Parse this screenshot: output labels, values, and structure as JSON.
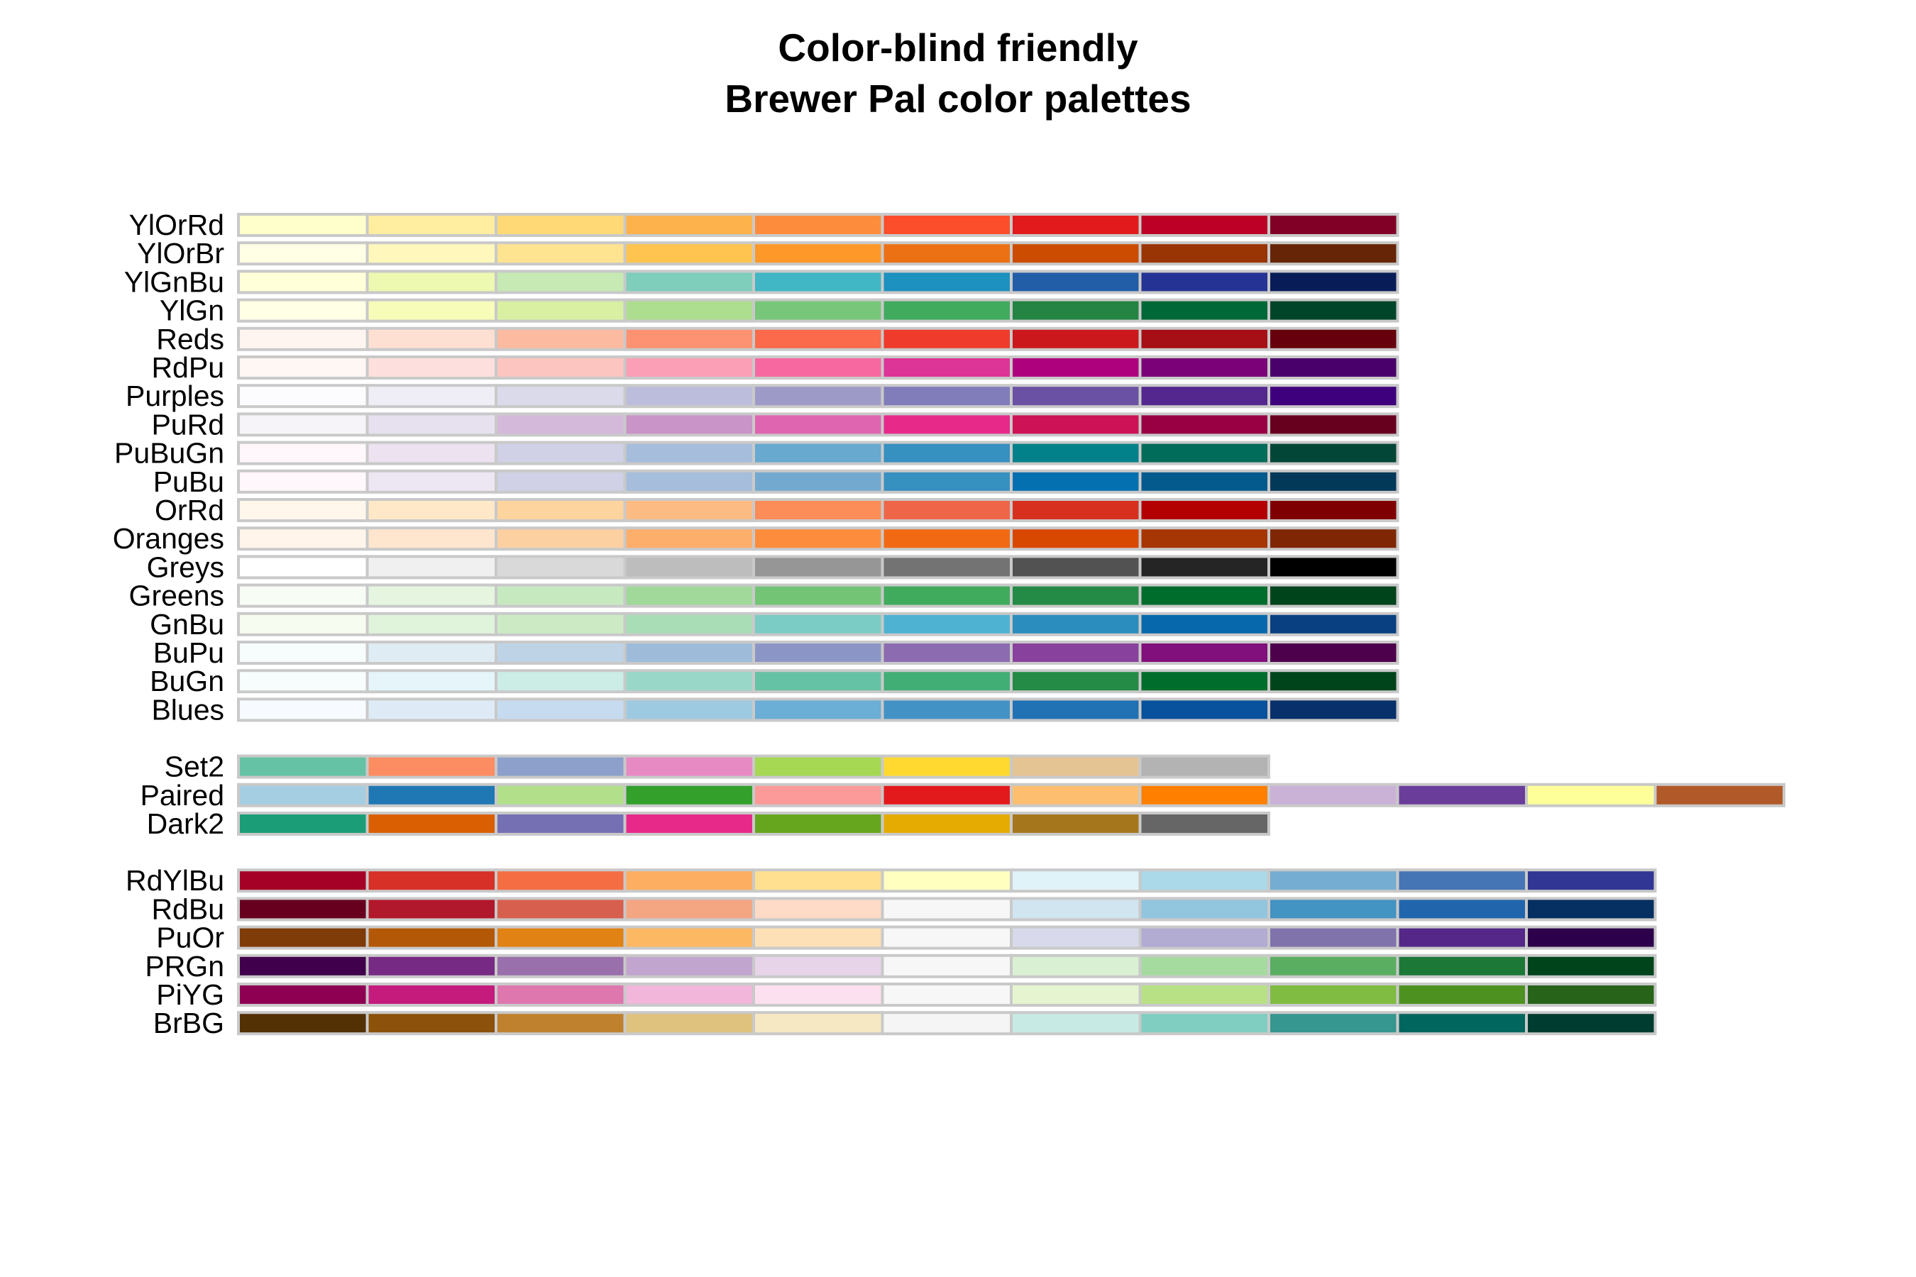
{
  "chart_data": {
    "type": "table",
    "title_lines": [
      "Color-blind friendly",
      "Brewer Pal color palettes"
    ],
    "groups": [
      {
        "kind": "sequential",
        "palettes": [
          {
            "name": "YlOrRd",
            "colors": [
              "#FFFFCC",
              "#FFEDA0",
              "#FED976",
              "#FEB24C",
              "#FD8D3C",
              "#FC4E2A",
              "#E31A1C",
              "#BD0026",
              "#800026"
            ]
          },
          {
            "name": "YlOrBr",
            "colors": [
              "#FFFFE5",
              "#FFF7BC",
              "#FEE391",
              "#FEC44F",
              "#FE9929",
              "#EC7014",
              "#CC4C02",
              "#993404",
              "#662506"
            ]
          },
          {
            "name": "YlGnBu",
            "colors": [
              "#FFFFD9",
              "#EDF8B1",
              "#C7E9B4",
              "#7FCDBB",
              "#41B6C4",
              "#1D91C0",
              "#225EA8",
              "#253494",
              "#081D58"
            ]
          },
          {
            "name": "YlGn",
            "colors": [
              "#FFFFE5",
              "#F7FCB9",
              "#D9F0A3",
              "#ADDD8E",
              "#78C679",
              "#41AB5D",
              "#238443",
              "#006837",
              "#004529"
            ]
          },
          {
            "name": "Reds",
            "colors": [
              "#FFF5F0",
              "#FEE0D2",
              "#FCBBA1",
              "#FC9272",
              "#FB6A4A",
              "#EF3B2C",
              "#CB181D",
              "#A50F15",
              "#67000D"
            ]
          },
          {
            "name": "RdPu",
            "colors": [
              "#FFF7F3",
              "#FDE0DD",
              "#FCC5C0",
              "#FA9FB5",
              "#F768A1",
              "#DD3497",
              "#AE017E",
              "#7A0177",
              "#49006A"
            ]
          },
          {
            "name": "Purples",
            "colors": [
              "#FCFBFD",
              "#EFEDF5",
              "#DADAEB",
              "#BCBDDC",
              "#9E9AC8",
              "#807DBA",
              "#6A51A3",
              "#54278F",
              "#3F007D"
            ]
          },
          {
            "name": "PuRd",
            "colors": [
              "#F7F4F9",
              "#E7E1EF",
              "#D4B9DA",
              "#C994C7",
              "#DF65B0",
              "#E7298A",
              "#CE1256",
              "#980043",
              "#67001F"
            ]
          },
          {
            "name": "PuBuGn",
            "colors": [
              "#FFF7FB",
              "#ECE2F0",
              "#D0D1E6",
              "#A6BDDB",
              "#67A9CF",
              "#3690C0",
              "#02818A",
              "#016C59",
              "#014636"
            ]
          },
          {
            "name": "PuBu",
            "colors": [
              "#FFF7FB",
              "#ECE7F2",
              "#D0D1E6",
              "#A6BDDB",
              "#74A9CF",
              "#3690C0",
              "#0570B0",
              "#045A8D",
              "#023858"
            ]
          },
          {
            "name": "OrRd",
            "colors": [
              "#FFF7EC",
              "#FEE8C8",
              "#FDD49E",
              "#FDBB84",
              "#FC8D59",
              "#EF6548",
              "#D7301F",
              "#B30000",
              "#7F0000"
            ]
          },
          {
            "name": "Oranges",
            "colors": [
              "#FFF5EB",
              "#FEE6CE",
              "#FDD0A2",
              "#FDAE6B",
              "#FD8D3C",
              "#F16913",
              "#D94801",
              "#A63603",
              "#7F2704"
            ]
          },
          {
            "name": "Greys",
            "colors": [
              "#FFFFFF",
              "#F0F0F0",
              "#D9D9D9",
              "#BDBDBD",
              "#969696",
              "#737373",
              "#525252",
              "#252525",
              "#000000"
            ]
          },
          {
            "name": "Greens",
            "colors": [
              "#F7FCF5",
              "#E5F5E0",
              "#C7E9C0",
              "#A1D99B",
              "#74C476",
              "#41AB5D",
              "#238B45",
              "#006D2C",
              "#00441B"
            ]
          },
          {
            "name": "GnBu",
            "colors": [
              "#F7FCF0",
              "#E0F3DB",
              "#CCEBC5",
              "#A8DDB5",
              "#7BCCC4",
              "#4EB3D3",
              "#2B8CBE",
              "#0868AC",
              "#084081"
            ]
          },
          {
            "name": "BuPu",
            "colors": [
              "#F7FCFD",
              "#E0ECF4",
              "#BFD3E6",
              "#9EBCDA",
              "#8C96C6",
              "#8C6BB1",
              "#88419D",
              "#810F7C",
              "#4D004B"
            ]
          },
          {
            "name": "BuGn",
            "colors": [
              "#F7FCFD",
              "#E5F5F9",
              "#CCECE6",
              "#99D8C9",
              "#66C2A4",
              "#41AE76",
              "#238B45",
              "#006D2C",
              "#00441B"
            ]
          },
          {
            "name": "Blues",
            "colors": [
              "#F7FBFF",
              "#DEEBF7",
              "#C6DBEF",
              "#9ECAE1",
              "#6BAED6",
              "#4292C6",
              "#2171B5",
              "#08519C",
              "#08306B"
            ]
          }
        ]
      },
      {
        "kind": "qualitative",
        "palettes": [
          {
            "name": "Set2",
            "colors": [
              "#66C2A5",
              "#FC8D62",
              "#8DA0CB",
              "#E78AC3",
              "#A6D854",
              "#FFD92F",
              "#E5C494",
              "#B3B3B3"
            ]
          },
          {
            "name": "Paired",
            "colors": [
              "#A6CEE3",
              "#1F78B4",
              "#B2DF8A",
              "#33A02C",
              "#FB9A99",
              "#E31A1C",
              "#FDBF6F",
              "#FF7F00",
              "#CAB2D6",
              "#6A3D9A",
              "#FFFF99",
              "#B15928"
            ]
          },
          {
            "name": "Dark2",
            "colors": [
              "#1B9E77",
              "#D95F02",
              "#7570B3",
              "#E7298A",
              "#66A61E",
              "#E6AB02",
              "#A6761D",
              "#666666"
            ]
          }
        ]
      },
      {
        "kind": "diverging",
        "palettes": [
          {
            "name": "RdYlBu",
            "colors": [
              "#A50026",
              "#D73027",
              "#F46D43",
              "#FDAE61",
              "#FEE090",
              "#FFFFBF",
              "#E0F3F8",
              "#ABD9E9",
              "#74ADD1",
              "#4575B4",
              "#313695"
            ]
          },
          {
            "name": "RdBu",
            "colors": [
              "#67001F",
              "#B2182B",
              "#D6604D",
              "#F4A582",
              "#FDDBC7",
              "#F7F7F7",
              "#D1E5F0",
              "#92C5DE",
              "#4393C3",
              "#2166AC",
              "#053061"
            ]
          },
          {
            "name": "PuOr",
            "colors": [
              "#7F3B08",
              "#B35806",
              "#E08214",
              "#FDB863",
              "#FEE0B6",
              "#F7F7F7",
              "#D8DAEB",
              "#B2ABD2",
              "#8073AC",
              "#542788",
              "#2D004B"
            ]
          },
          {
            "name": "PRGn",
            "colors": [
              "#40004B",
              "#762A83",
              "#9970AB",
              "#C2A5CF",
              "#E7D4E8",
              "#F7F7F7",
              "#D9F0D3",
              "#A6DBA0",
              "#5AAE61",
              "#1B7837",
              "#00441B"
            ]
          },
          {
            "name": "PiYG",
            "colors": [
              "#8E0152",
              "#C51B7D",
              "#DE77AE",
              "#F1B6DA",
              "#FDE0EF",
              "#F7F7F7",
              "#E6F5D0",
              "#B8E186",
              "#7FBC41",
              "#4D9221",
              "#276419"
            ]
          },
          {
            "name": "BrBG",
            "colors": [
              "#543005",
              "#8C510A",
              "#BF812D",
              "#DFC27D",
              "#F6E8C3",
              "#F5F5F5",
              "#C7EAE5",
              "#80CDC1",
              "#35978F",
              "#01665E",
              "#003C30"
            ]
          }
        ]
      }
    ]
  }
}
